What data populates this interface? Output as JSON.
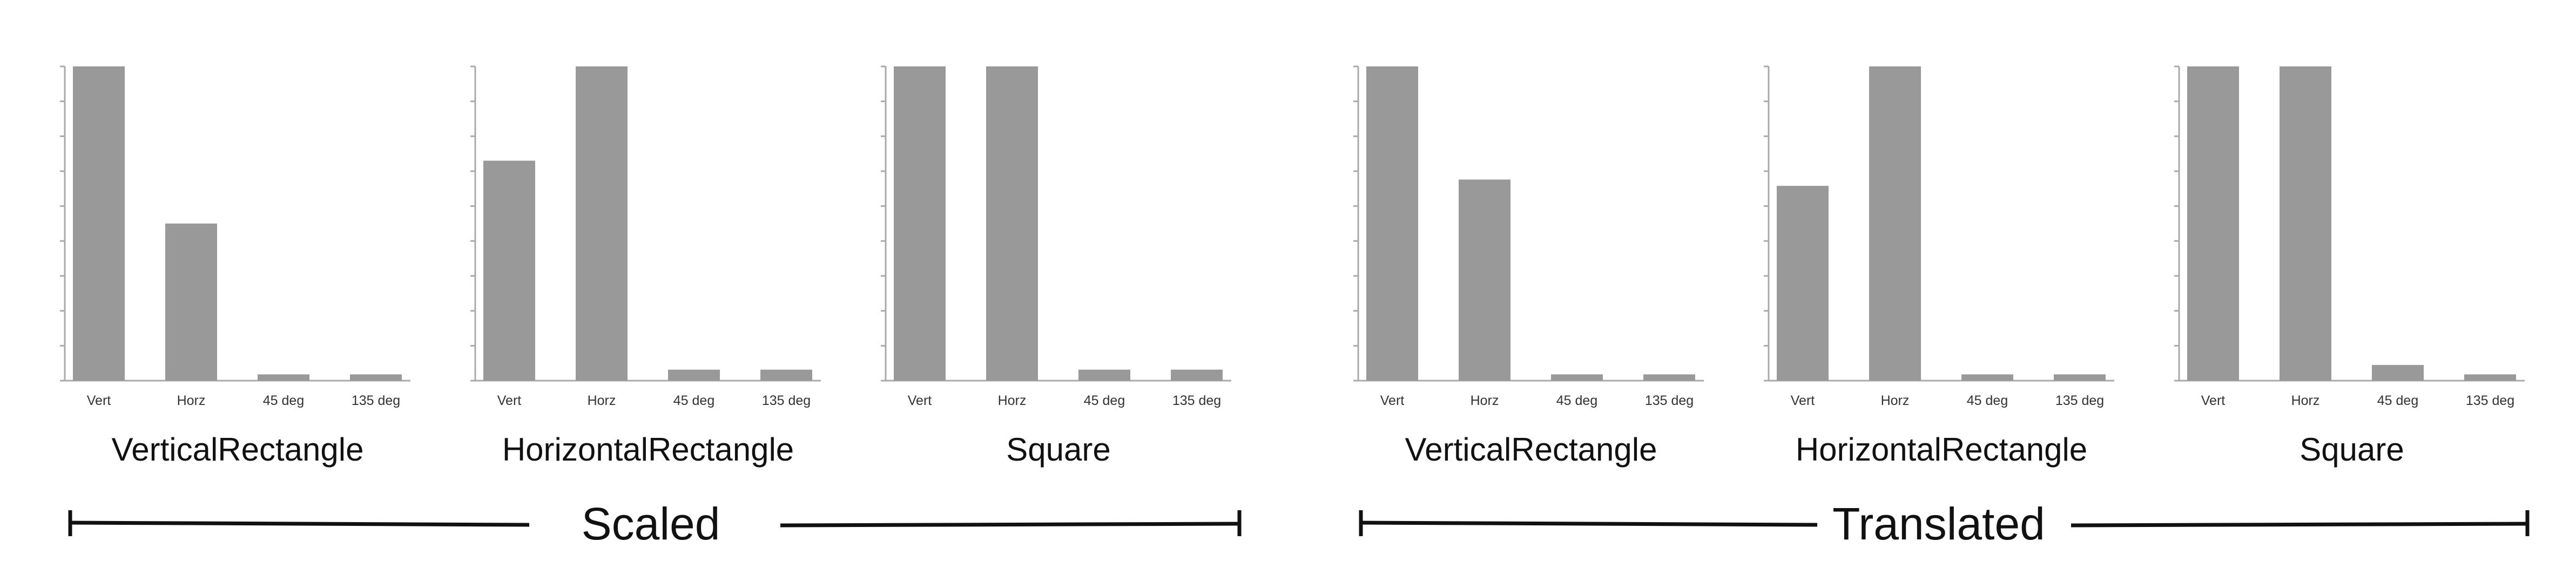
{
  "chart_data": [
    {
      "type": "bar",
      "title": "VerticalRectangle",
      "categories": [
        "Vert",
        "Horz",
        "45 deg",
        "135 deg"
      ],
      "values": [
        1.0,
        0.5,
        0.02,
        0.02
      ],
      "ylim": [
        0,
        1
      ],
      "grid": false
    },
    {
      "type": "bar",
      "title": "HorizontalRectangle",
      "categories": [
        "Vert",
        "Horz",
        "45 deg",
        "135 deg"
      ],
      "values": [
        0.7,
        1.0,
        0.035,
        0.035
      ],
      "ylim": [
        0,
        1
      ],
      "grid": false
    },
    {
      "type": "bar",
      "title": "Square",
      "categories": [
        "Vert",
        "Horz",
        "45 deg",
        "135 deg"
      ],
      "values": [
        1.0,
        1.0,
        0.035,
        0.035
      ],
      "ylim": [
        0,
        1
      ],
      "grid": false
    },
    {
      "type": "bar",
      "title": "VerticalRectangle",
      "categories": [
        "Vert",
        "Horz",
        "45 deg",
        "135 deg"
      ],
      "values": [
        1.0,
        0.64,
        0.02,
        0.02
      ],
      "ylim": [
        0,
        1
      ],
      "grid": false
    },
    {
      "type": "bar",
      "title": "HorizontalRectangle",
      "categories": [
        "Vert",
        "Horz",
        "45 deg",
        "135 deg"
      ],
      "values": [
        0.62,
        1.0,
        0.02,
        0.02
      ],
      "ylim": [
        0,
        1
      ],
      "grid": false
    },
    {
      "type": "bar",
      "title": "Square",
      "categories": [
        "Vert",
        "Horz",
        "45 deg",
        "135 deg"
      ],
      "values": [
        1.0,
        1.0,
        0.05,
        0.02
      ],
      "ylim": [
        0,
        1
      ],
      "grid": false
    }
  ],
  "groups": [
    {
      "label": "Scaled"
    },
    {
      "label": "Translated"
    }
  ],
  "colors": {
    "bar": "#999999",
    "axis": "#aaaaaa",
    "text": "#111111",
    "bracket": "#111111"
  }
}
